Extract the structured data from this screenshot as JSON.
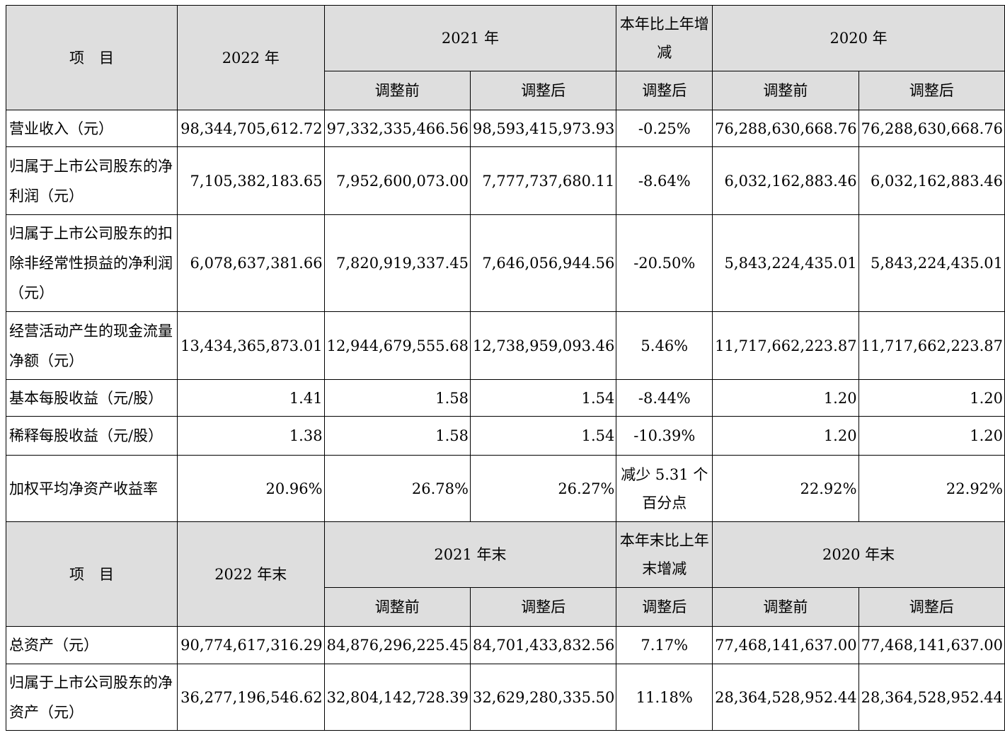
{
  "header1": {
    "item": "项　目",
    "y2022": "2022 年",
    "y2021": "2021 年",
    "change": "本年比上年增减",
    "y2020": "2020 年",
    "before": "调整前",
    "after": "调整后",
    "change_after": "调整后"
  },
  "rows1": [
    {
      "label": "营业收入（元）",
      "v2022": "98,344,705,612.72",
      "v2021_before": "97,332,335,466.56",
      "v2021_after": "98,593,415,973.93",
      "change": "-0.25%",
      "v2020_before": "76,288,630,668.76",
      "v2020_after": "76,288,630,668.76"
    },
    {
      "label": "归属于上市公司股东的净利润（元）",
      "v2022": "7,105,382,183.65",
      "v2021_before": "7,952,600,073.00",
      "v2021_after": "7,777,737,680.11",
      "change": "-8.64%",
      "v2020_before": "6,032,162,883.46",
      "v2020_after": "6,032,162,883.46"
    },
    {
      "label": "归属于上市公司股东的扣除非经常性损益的净利润（元）",
      "v2022": "6,078,637,381.66",
      "v2021_before": "7,820,919,337.45",
      "v2021_after": "7,646,056,944.56",
      "change": "-20.50%",
      "v2020_before": "5,843,224,435.01",
      "v2020_after": "5,843,224,435.01"
    },
    {
      "label": "经营活动产生的现金流量净额（元）",
      "v2022": "13,434,365,873.01",
      "v2021_before": "12,944,679,555.68",
      "v2021_after": "12,738,959,093.46",
      "change": "5.46%",
      "v2020_before": "11,717,662,223.87",
      "v2020_after": "11,717,662,223.87"
    },
    {
      "label": "基本每股收益（元/股）",
      "v2022": "1.41",
      "v2021_before": "1.58",
      "v2021_after": "1.54",
      "change": "-8.44%",
      "v2020_before": "1.20",
      "v2020_after": "1.20"
    },
    {
      "label": "稀释每股收益（元/股）",
      "v2022": "1.38",
      "v2021_before": "1.58",
      "v2021_after": "1.54",
      "change": "-10.39%",
      "v2020_before": "1.20",
      "v2020_after": "1.20"
    },
    {
      "label": "加权平均净资产收益率",
      "v2022": "20.96%",
      "v2021_before": "26.78%",
      "v2021_after": "26.27%",
      "change": "减少 5.31 个百分点",
      "v2020_before": "22.92%",
      "v2020_after": "22.92%"
    }
  ],
  "header2": {
    "item": "项　目",
    "y2022": "2022 年末",
    "y2021": "2021 年末",
    "change": "本年末比上年末增减",
    "y2020": "2020 年末",
    "before": "调整前",
    "after": "调整后",
    "change_after": "调整后"
  },
  "rows2": [
    {
      "label": "总资产（元）",
      "v2022": "90,774,617,316.29",
      "v2021_before": "84,876,296,225.45",
      "v2021_after": "84,701,433,832.56",
      "change": "7.17%",
      "v2020_before": "77,468,141,637.00",
      "v2020_after": "77,468,141,637.00"
    },
    {
      "label": "归属于上市公司股东的净资产（元）",
      "v2022": "36,277,196,546.62",
      "v2021_before": "32,804,142,728.39",
      "v2021_after": "32,629,280,335.50",
      "change": "11.18%",
      "v2020_before": "28,364,528,952.44",
      "v2020_after": "28,364,528,952.44"
    }
  ]
}
